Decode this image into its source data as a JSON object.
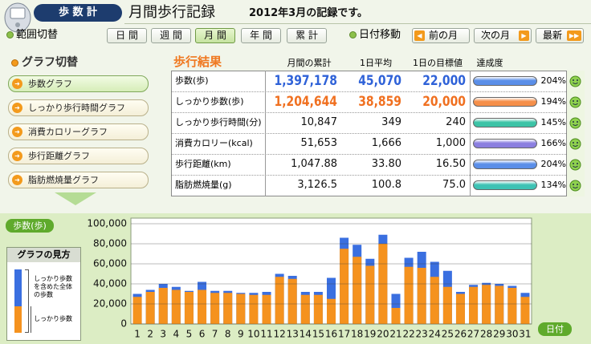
{
  "header": {
    "app": "歩 数 計",
    "title": "月間歩行記録",
    "subtitle": "2012年3月の記録です。"
  },
  "range": {
    "label": "範囲切替",
    "buttons": [
      "日 間",
      "週 間",
      "月 間",
      "年 間",
      "累 計"
    ],
    "selected": 2
  },
  "date_nav": {
    "label": "日付移動",
    "buttons": [
      "前の月",
      "次の月",
      "最新"
    ]
  },
  "graph_switch": {
    "title": "グラフ切替",
    "buttons": [
      "歩数グラフ",
      "しっかり歩行時間グラフ",
      "消費カロリーグラフ",
      "歩行距離グラフ",
      "脂肪燃焼量グラフ"
    ],
    "selected": 0
  },
  "results": {
    "title": "歩行結果",
    "columns": [
      "月間の累計",
      "1日平均",
      "1日の目標値",
      "達成度"
    ],
    "rows": [
      {
        "label": "歩数(歩)",
        "total": "1,397,178",
        "average": "45,070",
        "target": "22,000",
        "achievement": "204%"
      },
      {
        "label": "しっかり歩数(歩)",
        "total": "1,204,644",
        "average": "38,859",
        "target": "20,000",
        "achievement": "194%"
      },
      {
        "label": "しっかり歩行時間(分)",
        "total": "10,847",
        "average": "349",
        "target": "240",
        "achievement": "145%"
      },
      {
        "label": "消費カロリー(kcal)",
        "total": "51,653",
        "average": "1,666",
        "target": "1,000",
        "achievement": "166%"
      },
      {
        "label": "歩行距離(km)",
        "total": "1,047.88",
        "average": "33.80",
        "target": "16.50",
        "achievement": "204%"
      },
      {
        "label": "脂肪燃焼量(g)",
        "total": "3,126.5",
        "average": "100.8",
        "target": "75.0",
        "achievement": "134%"
      }
    ]
  },
  "chart_data": {
    "type": "bar",
    "y_label": "歩数(歩)",
    "x_label": "日付",
    "legend_title": "グラフの見方",
    "categories": [
      "1",
      "2",
      "3",
      "4",
      "5",
      "6",
      "7",
      "8",
      "9",
      "10",
      "11",
      "12",
      "13",
      "14",
      "15",
      "16",
      "17",
      "18",
      "19",
      "20",
      "21",
      "22",
      "23",
      "24",
      "25",
      "26",
      "27",
      "28",
      "29",
      "30",
      "31"
    ],
    "series": [
      {
        "name": "しっかり歩数を含めた全体の歩数",
        "color": "#3a6fe0",
        "values": [
          30000,
          34000,
          40000,
          37000,
          33000,
          42000,
          33000,
          33000,
          31000,
          31000,
          32000,
          50000,
          48000,
          32000,
          32000,
          46000,
          86000,
          79000,
          65000,
          89000,
          30000,
          66000,
          72000,
          62000,
          53000,
          32000,
          39000,
          41000,
          40000,
          38000,
          31000
        ]
      },
      {
        "name": "しっかり歩数",
        "color": "#f5921e",
        "values": [
          27000,
          32000,
          36000,
          34000,
          32000,
          34000,
          31000,
          31000,
          30000,
          29000,
          29000,
          47000,
          45000,
          29000,
          29000,
          25000,
          75000,
          67000,
          58000,
          80000,
          16000,
          57000,
          56000,
          47000,
          37000,
          30000,
          37000,
          39000,
          38000,
          36000,
          27000
        ]
      }
    ],
    "ylim": [
      0,
      100000
    ],
    "yticks": [
      0,
      {
        "value": 20000,
        "label": "20,000"
      },
      {
        "value": 40000,
        "label": "40,000"
      },
      {
        "value": 60000,
        "label": "60,000"
      },
      {
        "value": 80000,
        "label": "80,000"
      },
      {
        "value": 100000,
        "label": "100,000"
      }
    ],
    "grid": true
  }
}
